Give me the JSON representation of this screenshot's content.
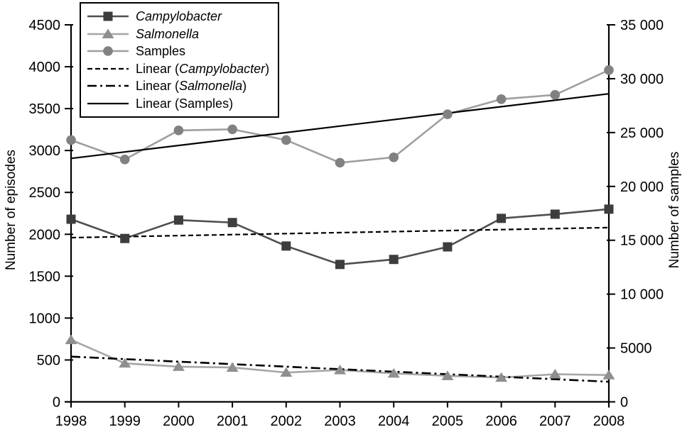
{
  "figure": {
    "background": "#ffffff"
  },
  "chart_data": {
    "type": "line",
    "categories": [
      "1998",
      "1999",
      "2000",
      "2001",
      "2002",
      "2003",
      "2004",
      "2005",
      "2006",
      "2007",
      "2008"
    ],
    "axis_left": {
      "label": "Number of episodes",
      "min": 0,
      "max": 4500,
      "tick_step": 500,
      "tick_labels": [
        "0",
        "500",
        "1000",
        "1500",
        "2000",
        "2500",
        "3000",
        "3500",
        "4000",
        "4500"
      ]
    },
    "axis_right": {
      "label": "Number of samples",
      "min": 0,
      "max": 35000,
      "tick_step": 5000,
      "tick_labels": [
        "0",
        "5000",
        "10 000",
        "15 000",
        "20 000",
        "25 000",
        "30 000",
        "35 000"
      ]
    },
    "grid": "off",
    "legend_position": "top-left",
    "series": [
      {
        "name": "Campylobacter",
        "slug": "campylobacter",
        "axis": "left",
        "marker": "square",
        "marker_color": "#3d3d3d",
        "line_color": "#4f4f4f",
        "values": [
          2180,
          1950,
          2170,
          2140,
          1860,
          1640,
          1700,
          1850,
          2190,
          2240,
          2300
        ]
      },
      {
        "name": "Salmonella",
        "slug": "salmonella",
        "axis": "left",
        "marker": "triangle",
        "marker_color": "#8f8f8f",
        "line_color": "#a6a6a6",
        "values": [
          740,
          460,
          420,
          410,
          350,
          380,
          340,
          310,
          290,
          330,
          320
        ]
      },
      {
        "name": "Samples",
        "slug": "samples",
        "axis": "right",
        "marker": "circle",
        "marker_color": "#818181",
        "line_color": "#9f9f9f",
        "values": [
          24300,
          22500,
          25200,
          25300,
          24300,
          22200,
          22700,
          26700,
          28100,
          28500,
          30800
        ]
      }
    ],
    "trend_lines": [
      {
        "name": "Linear (Campylobacter)",
        "slug": "linear-campylobacter",
        "axis": "left",
        "start": 1960,
        "end": 2080,
        "style": "dashed",
        "color": "#000000"
      },
      {
        "name": "Linear (Salmonella)",
        "slug": "linear-salmonella",
        "axis": "left",
        "start": 540,
        "end": 240,
        "style": "dashdot",
        "color": "#000000"
      },
      {
        "name": "Linear (Samples)",
        "slug": "linear-samples",
        "axis": "right",
        "start": 22600,
        "end": 28600,
        "style": "solid",
        "color": "#000000"
      }
    ]
  },
  "legend": {
    "items": [
      {
        "pre": "",
        "italic": "Campylobacter",
        "post": "",
        "sample_type": "series",
        "ref": "campylobacter"
      },
      {
        "pre": "",
        "italic": "Salmonella",
        "post": "",
        "sample_type": "series",
        "ref": "salmonella"
      },
      {
        "pre": "Samples",
        "italic": "",
        "post": "",
        "sample_type": "series",
        "ref": "samples"
      },
      {
        "pre": "Linear (",
        "italic": "Campylobacter",
        "post": ")",
        "sample_type": "trend",
        "ref": "linear-campylobacter"
      },
      {
        "pre": "Linear (",
        "italic": "Salmonella",
        "post": ")",
        "sample_type": "trend",
        "ref": "linear-salmonella"
      },
      {
        "pre": "Linear (Samples)",
        "italic": "",
        "post": "",
        "sample_type": "trend",
        "ref": "linear-samples"
      }
    ]
  }
}
